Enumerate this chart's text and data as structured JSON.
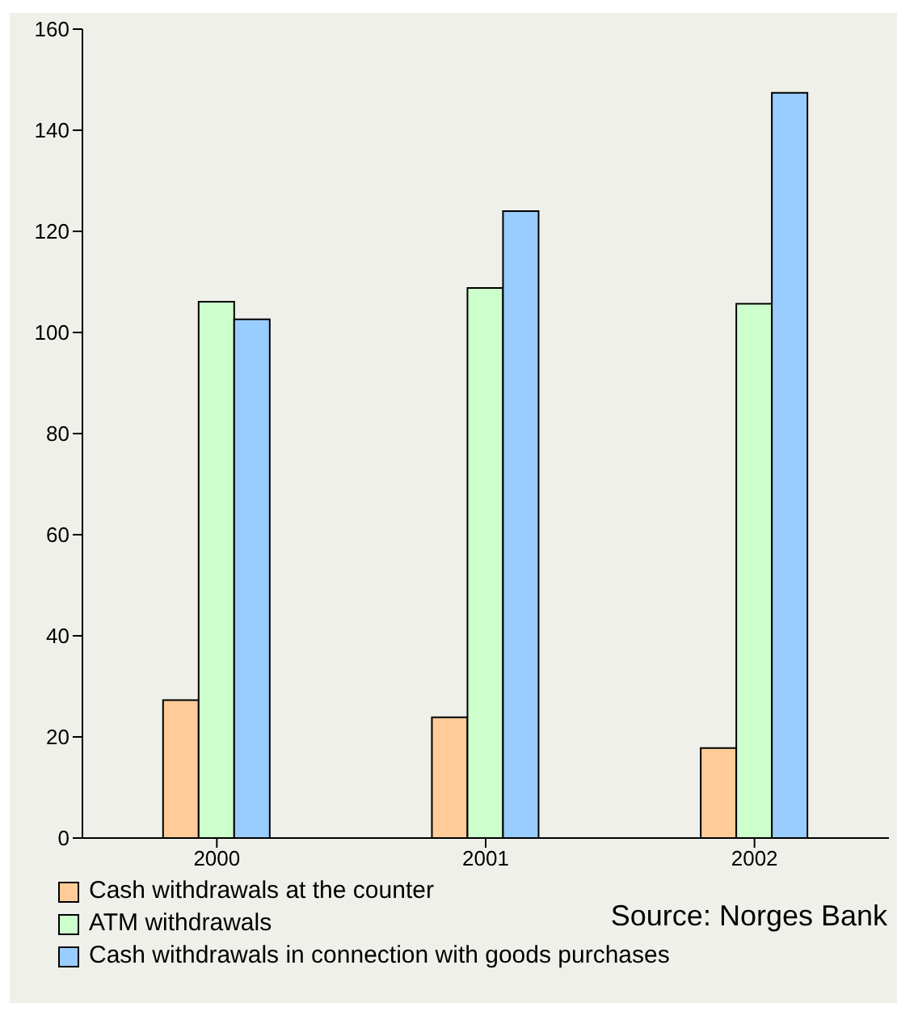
{
  "chart_data": {
    "type": "bar",
    "categories": [
      "2000",
      "2001",
      "2002"
    ],
    "series": [
      {
        "name": "Cash withdrawals at the counter",
        "color": "#ffcc99",
        "values": [
          27.3,
          23.9,
          17.8
        ]
      },
      {
        "name": "ATM withdrawals",
        "color": "#ccffcc",
        "values": [
          106.1,
          108.8,
          105.7
        ]
      },
      {
        "name": "Cash withdrawals in connection with goods purchases",
        "color": "#99ccff",
        "values": [
          102.6,
          124,
          147.4
        ]
      }
    ],
    "ylim": [
      0,
      160
    ],
    "yticks": [
      0,
      20,
      40,
      60,
      80,
      100,
      120,
      140,
      160
    ],
    "grid": false,
    "legend": "bottom",
    "annotations": [
      "Source: Norges Bank"
    ]
  }
}
